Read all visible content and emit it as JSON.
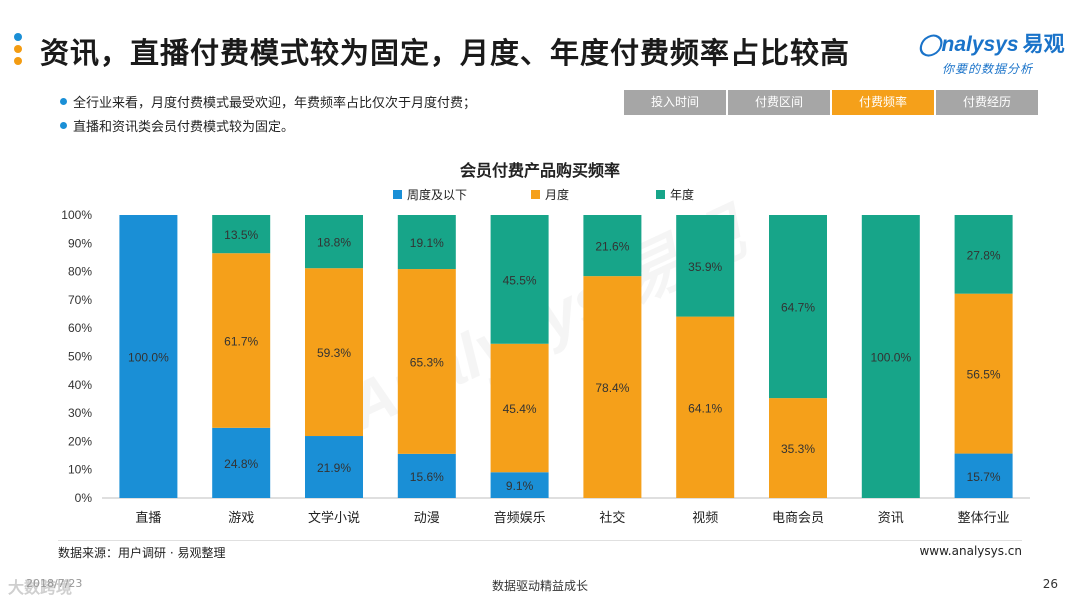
{
  "header": {
    "title": "资讯，直播付费模式较为固定，月度、年度付费频率占比较高",
    "logo_main": "nalysys",
    "logo_cn": "易观",
    "logo_sub": "你要的数据分析"
  },
  "bullets": [
    "全行业来看，月度付费模式最受欢迎，年费频率占比仅次于月度付费；",
    "直播和资讯类会员付费模式较为固定。"
  ],
  "tabs": [
    {
      "label": "投入时间"
    },
    {
      "label": "付费区间"
    },
    {
      "label": "付费频率"
    },
    {
      "label": "付费经历"
    }
  ],
  "colors": {
    "weekly": "#1a8fd6",
    "monthly": "#f5a01a",
    "yearly": "#17a589",
    "tab_active": "#f5a01a"
  },
  "chart_data": {
    "type": "bar",
    "stacked": true,
    "title": "会员付费产品购买频率",
    "categories": [
      "直播",
      "游戏",
      "文学小说",
      "动漫",
      "音频娱乐",
      "社交",
      "视频",
      "电商会员",
      "资讯",
      "整体行业"
    ],
    "series": [
      {
        "name": "周度及以下",
        "values": [
          100.0,
          24.8,
          21.9,
          15.6,
          9.1,
          0,
          0,
          0,
          0,
          15.7
        ],
        "labels": [
          "100.0%",
          "24.8%",
          "21.9%",
          "15.6%",
          "9.1%",
          "",
          "",
          "",
          "",
          "15.7%"
        ]
      },
      {
        "name": "月度",
        "values": [
          0,
          61.7,
          59.3,
          65.3,
          45.4,
          78.4,
          64.1,
          35.3,
          0,
          56.5
        ],
        "labels": [
          "",
          "61.7%",
          "59.3%",
          "65.3%",
          "45.4%",
          "78.4%",
          "64.1%",
          "35.3%",
          "",
          "56.5%"
        ]
      },
      {
        "name": "年度",
        "values": [
          0,
          13.5,
          18.8,
          19.1,
          45.5,
          21.6,
          35.9,
          64.7,
          100.0,
          27.8
        ],
        "labels": [
          "",
          "13.5%",
          "18.8%",
          "19.1%",
          "45.5%",
          "21.6%",
          "35.9%",
          "64.7%",
          "100.0%",
          "27.8%"
        ]
      }
    ],
    "yticks": [
      "0%",
      "10%",
      "20%",
      "30%",
      "40%",
      "50%",
      "60%",
      "70%",
      "80%",
      "90%",
      "100%"
    ],
    "ylim": [
      0,
      100
    ],
    "legend_position": "top-center"
  },
  "footer": {
    "source": "数据来源：用户调研 · 易观整理",
    "website": "www.analysys.cn",
    "date": "2018/7/23",
    "slogan": "数据驱动精益成长",
    "page": "26",
    "wechat": "大数跨境"
  }
}
